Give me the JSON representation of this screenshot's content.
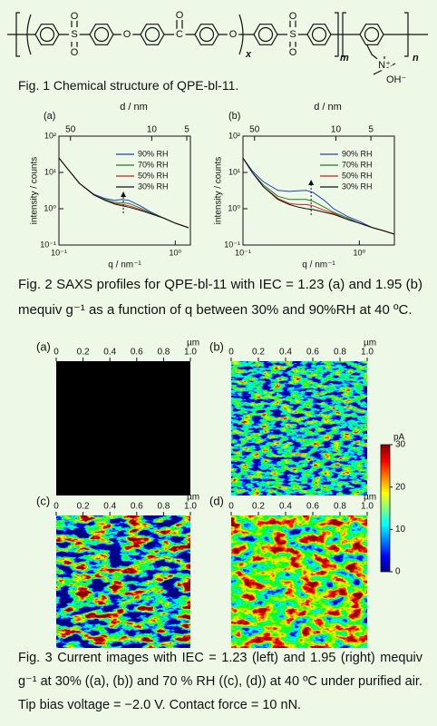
{
  "structure": {
    "labels": [
      "S",
      "O",
      "O",
      "O",
      "C",
      "O",
      "O",
      "S",
      "O",
      "O",
      "x",
      "m",
      "n",
      "N⁺",
      "OH⁻"
    ]
  },
  "figure1": {
    "caption": "Fig. 1 Chemical structure of QPE-bl-11."
  },
  "chart_data": [
    {
      "type": "line",
      "panel": "(a)",
      "xlabel": "q / nm⁻¹",
      "ylabel": "intensity / counts",
      "top_axis_label": "d / nm",
      "log_x": true,
      "log_y": true,
      "legend": "upper right",
      "x": [
        0.1,
        0.12,
        0.15,
        0.2,
        0.25,
        0.3,
        0.35,
        0.4,
        0.5,
        0.6,
        0.8,
        1.0,
        1.3
      ],
      "series": [
        {
          "name": "90% RH",
          "color": "#1f3fbf",
          "values": [
            25,
            12,
            5,
            2.5,
            1.9,
            1.7,
            1.8,
            1.7,
            1.2,
            0.85,
            0.55,
            0.4,
            0.3
          ]
        },
        {
          "name": "70% RH",
          "color": "#1f7a2a",
          "values": [
            25,
            12,
            5,
            2.4,
            1.8,
            1.5,
            1.45,
            1.4,
            1.05,
            0.8,
            0.55,
            0.4,
            0.3
          ]
        },
        {
          "name": "50% RH",
          "color": "#cc2020",
          "values": [
            25,
            12,
            5,
            2.4,
            1.7,
            1.4,
            1.3,
            1.2,
            0.95,
            0.75,
            0.55,
            0.4,
            0.3
          ]
        },
        {
          "name": "30% RH",
          "color": "#111111",
          "values": [
            25,
            12,
            5,
            2.4,
            1.7,
            1.35,
            1.2,
            1.1,
            0.9,
            0.75,
            0.55,
            0.4,
            0.3
          ]
        }
      ],
      "xlim": [
        0.1,
        1.35
      ],
      "ylim": [
        0.1,
        100
      ],
      "xticks": [
        {
          "value": 0.1,
          "label": "10⁻¹"
        },
        {
          "value": 1,
          "label": "10⁰"
        }
      ],
      "yticks": [
        {
          "value": 0.1,
          "label": "10⁻¹"
        },
        {
          "value": 1,
          "label": "10⁰"
        },
        {
          "value": 10,
          "label": "10¹"
        },
        {
          "value": 100,
          "label": "10²"
        }
      ],
      "dticks": [
        50,
        10,
        5
      ]
    },
    {
      "type": "line",
      "panel": "(b)",
      "xlabel": "q / nm⁻¹",
      "ylabel": "intensity / counts",
      "top_axis_label": "d / nm",
      "log_x": true,
      "log_y": true,
      "legend": "upper right",
      "x": [
        0.1,
        0.12,
        0.15,
        0.2,
        0.25,
        0.3,
        0.35,
        0.4,
        0.5,
        0.6,
        0.8,
        1.0,
        1.3,
        1.6,
        2.0
      ],
      "series": [
        {
          "name": "90% RH",
          "color": "#1f3fbf",
          "values": [
            25,
            11,
            5.5,
            3.2,
            3.0,
            3.1,
            3.2,
            2.8,
            1.7,
            1.0,
            0.6,
            0.45,
            0.3,
            0.25,
            0.2
          ]
        },
        {
          "name": "70% RH",
          "color": "#1f7a2a",
          "values": [
            25,
            10,
            4.5,
            2.2,
            1.8,
            1.8,
            1.8,
            1.6,
            1.1,
            0.8,
            0.55,
            0.4,
            0.3,
            0.25,
            0.2
          ]
        },
        {
          "name": "50% RH",
          "color": "#cc2020",
          "values": [
            25,
            10,
            4,
            1.9,
            1.4,
            1.3,
            1.3,
            1.2,
            0.9,
            0.75,
            0.5,
            0.4,
            0.3,
            0.25,
            0.2
          ]
        },
        {
          "name": "30% RH",
          "color": "#111111",
          "values": [
            25,
            10,
            4,
            1.8,
            1.3,
            1.1,
            1.0,
            0.95,
            0.8,
            0.7,
            0.5,
            0.4,
            0.3,
            0.25,
            0.2
          ]
        }
      ],
      "xlim": [
        0.1,
        2
      ],
      "ylim": [
        0.1,
        100
      ],
      "xticks": [
        {
          "value": 0.1,
          "label": "10⁻¹"
        },
        {
          "value": 1,
          "label": "10⁰"
        }
      ],
      "yticks": [
        {
          "value": 0.1,
          "label": "10⁻¹"
        },
        {
          "value": 1,
          "label": "10⁰"
        },
        {
          "value": 10,
          "label": "10¹"
        },
        {
          "value": 100,
          "label": "10²"
        }
      ],
      "dticks": [
        50,
        10,
        5
      ]
    }
  ],
  "figure2": {
    "caption": "Fig. 2 SAXS profiles for QPE-bl-11 with IEC = 1.23 (a) and 1.95 (b) mequiv g⁻¹ as a function of q between 30% and 90%RH at 40 ºC."
  },
  "figure3": {
    "panels": [
      "(a)",
      "(b)",
      "(c)",
      "(d)"
    ],
    "axis_ticks": [
      0,
      0.2,
      0.4,
      0.6,
      0.8,
      {
        "value": 1,
        "label": "1.0"
      }
    ],
    "axis_unit": "µm",
    "colorbar": {
      "unit": "pA",
      "range": [
        0,
        30
      ],
      "ticks": [
        0,
        10,
        20,
        30
      ]
    },
    "caption": "Fig. 3 Current images with IEC = 1.23 (left) and 1.95 (right) mequiv g⁻¹ at 30% ((a), (b)) and 70 % RH ((c), (d)) at 40 ºC under purified air. Tip bias voltage = −2.0 V. Contact force = 10 nN."
  }
}
